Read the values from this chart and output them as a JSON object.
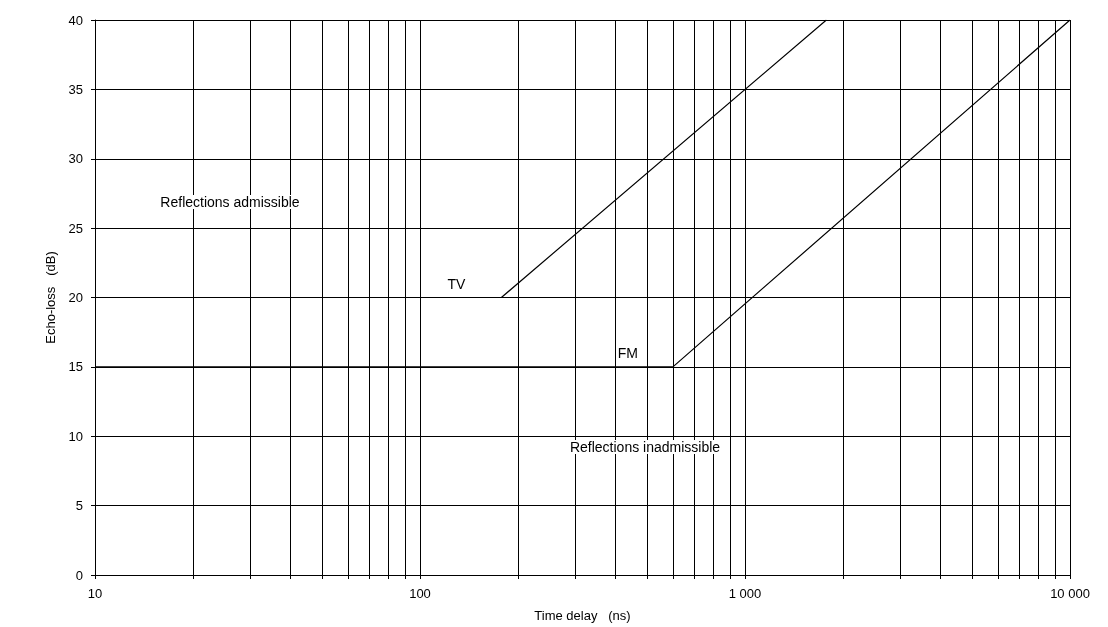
{
  "chart_data": {
    "type": "line",
    "xlabel": "Time delay   (ns)",
    "ylabel": "Echo-loss   (dB)",
    "log": "x",
    "xlim": [
      10,
      10000
    ],
    "ylim": [
      0,
      40
    ],
    "xticks": [
      10,
      {
        "value": 20,
        "label": null
      },
      {
        "value": 30,
        "label": null
      },
      {
        "value": 40,
        "label": null
      },
      {
        "value": 50,
        "label": null
      },
      {
        "value": 60,
        "label": null
      },
      {
        "value": 70,
        "label": null
      },
      {
        "value": 80,
        "label": null
      },
      {
        "value": 90,
        "label": null
      },
      100,
      {
        "value": 200,
        "label": null
      },
      {
        "value": 300,
        "label": null
      },
      {
        "value": 400,
        "label": null
      },
      {
        "value": 500,
        "label": null
      },
      {
        "value": 600,
        "label": null
      },
      {
        "value": 700,
        "label": null
      },
      {
        "value": 800,
        "label": null
      },
      {
        "value": 900,
        "label": null
      },
      {
        "value": 1000,
        "label": "1 000"
      },
      {
        "value": 2000,
        "label": null
      },
      {
        "value": 3000,
        "label": null
      },
      {
        "value": 4000,
        "label": null
      },
      {
        "value": 5000,
        "label": null
      },
      {
        "value": 6000,
        "label": null
      },
      {
        "value": 7000,
        "label": null
      },
      {
        "value": 8000,
        "label": null
      },
      {
        "value": 9000,
        "label": null
      },
      {
        "value": 10000,
        "label": "10 000"
      }
    ],
    "yticks": [
      0,
      5,
      10,
      15,
      20,
      25,
      30,
      35,
      40
    ],
    "grid": true,
    "legend": false,
    "marker": "none",
    "line_style": "solid",
    "series": [
      {
        "name": "TV",
        "color": "#000000",
        "x": [
          10,
          178,
          1780
        ],
        "values": [
          20,
          20,
          40
        ]
      },
      {
        "name": "FM",
        "color": "#000000",
        "x": [
          10,
          600,
          10000
        ],
        "values": [
          15,
          15,
          40
        ]
      }
    ],
    "annotations": [
      "Reflections admissible",
      "Reflections inadmissible"
    ]
  }
}
